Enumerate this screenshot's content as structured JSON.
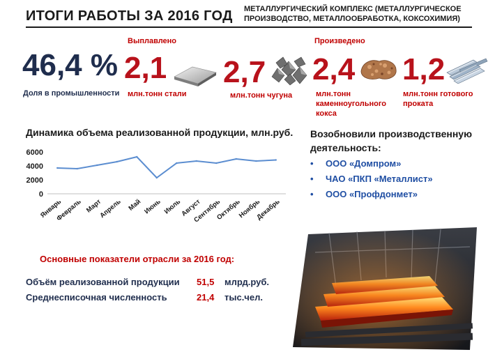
{
  "header": {
    "title": "ИТОГИ РАБОТЫ ЗА 2016 ГОД",
    "subtitle": "МЕТАЛЛУРГИЧЕСКИЙ КОМПЛЕКС (МЕТАЛЛУРГИЧЕСКОЕ ПРОИЗВОДСТВО, МЕТАЛЛООБРАБОТКА, КОКСОХИМИЯ)"
  },
  "share": {
    "value": "46,4 %",
    "label": "Доля в промышленности"
  },
  "smelted": {
    "label": "Выплавлено",
    "steel": {
      "value": "2,1",
      "unit": "млн.тонн стали"
    },
    "pig_iron": {
      "value": "2,7",
      "unit": "млн.тонн чугуна"
    }
  },
  "produced": {
    "label": "Произведено",
    "coke": {
      "value": "2,4",
      "unit": "млн.тонн каменноугольного кокса"
    },
    "rolled": {
      "value": "1,2",
      "unit": "млн.тонн готового проката"
    }
  },
  "icons": [
    "steel-slab-icon",
    "pig-iron-icon",
    "coke-icon",
    "rolled-metal-icon",
    "hot-steel-photo"
  ],
  "chart_data": {
    "type": "line",
    "title": "Динамика объема реализованной продукции, млн.руб.",
    "categories": [
      "Январь",
      "Февраль",
      "Март",
      "Апрель",
      "Май",
      "Июнь",
      "Июль",
      "Август",
      "Сентябрь",
      "Октябрь",
      "Ноябрь",
      "Декабрь"
    ],
    "series": [
      {
        "values": [
          3700,
          3600,
          4100,
          4600,
          5300,
          2300,
          4400,
          4700,
          4400,
          5000,
          4700,
          4850
        ]
      }
    ],
    "y_ticks": [
      "0",
      "2000",
      "4000",
      "6000"
    ],
    "ylim": [
      0,
      6000
    ],
    "grid": false,
    "line_color": "#5b8dd0"
  },
  "resumed": {
    "title": "Возобновили производственную деятельность:",
    "companies": [
      "ООО «Домпром»",
      "ЧАО «ПКП «Металлист»",
      "ООО «Профдонмет»"
    ]
  },
  "indicators": {
    "title": "Основные показатели отрасли за 2016 год:",
    "rows": [
      {
        "label": "Объём реализованной продукции",
        "value": "51,5",
        "unit": "млрд.руб."
      },
      {
        "label": "Среднесписочная численность",
        "value": "21,4",
        "unit": "тыс.чел."
      }
    ]
  },
  "colors": {
    "navy": "#1f2d4d",
    "red": "#b8121b",
    "accent_red": "#c00000",
    "list_blue": "#1f4ea3"
  }
}
